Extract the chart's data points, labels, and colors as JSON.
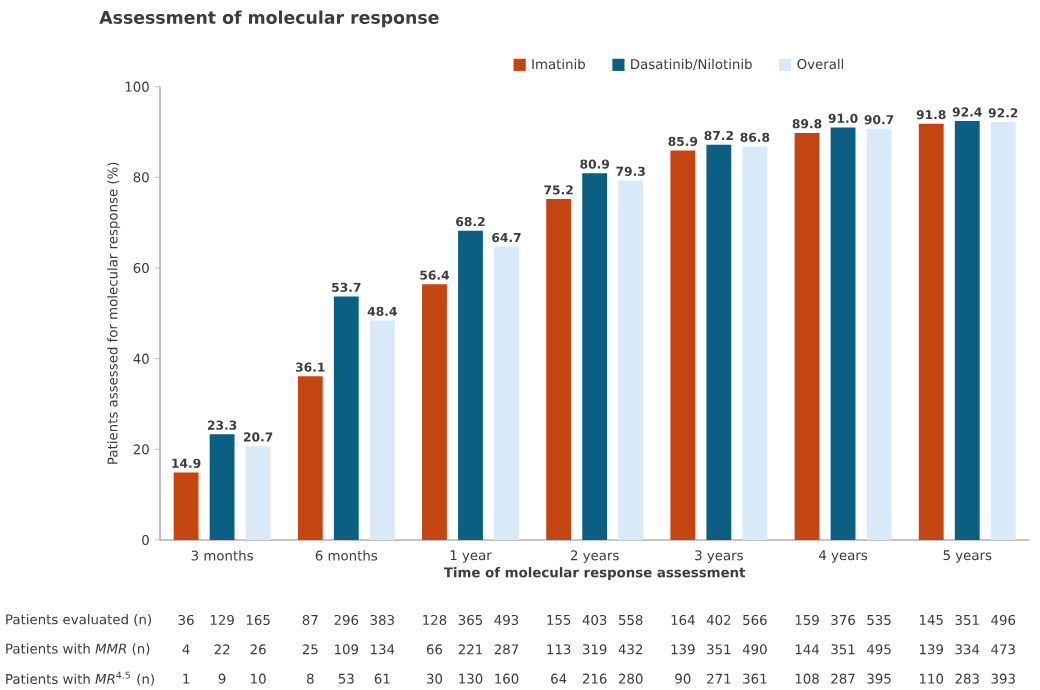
{
  "chart_data": {
    "type": "bar",
    "title": "Assessment of molecular response",
    "xlabel": "Time of molecular response assessment",
    "ylabel": "Patients assessed for molecular response (%)",
    "categories": [
      "3 months",
      "6 months",
      "1 year",
      "2 years",
      "3 years",
      "4 years",
      "5 years"
    ],
    "series": [
      {
        "name": "Imatinib",
        "color": "#c4450f",
        "values": [
          14.9,
          36.1,
          56.4,
          75.2,
          85.9,
          89.8,
          91.8
        ],
        "value_labels": [
          "14.9",
          "36.1",
          "56.4",
          "75.2",
          "85.9",
          "89.8",
          "91.8"
        ]
      },
      {
        "name": "Dasatinib/Nilotinib",
        "color": "#0b5f82",
        "values": [
          23.3,
          53.7,
          68.2,
          80.9,
          87.2,
          91.0,
          92.4
        ],
        "value_labels": [
          "23.3",
          "53.7",
          "68.2",
          "80.9",
          "87.2",
          "91.0",
          "92.4"
        ]
      },
      {
        "name": "Overall",
        "color": "#d8eaf8",
        "values": [
          20.7,
          48.4,
          64.7,
          79.3,
          86.8,
          90.7,
          92.2
        ],
        "value_labels": [
          "20.7",
          "48.4",
          "64.7",
          "79.3",
          "86.8",
          "90.7",
          "92.2"
        ]
      }
    ],
    "ylim": [
      0,
      100
    ],
    "yticks": [
      0,
      20,
      40,
      60,
      80,
      100
    ],
    "grid": false,
    "legend": "top",
    "annotations": [
      "Patients evaluated (n)",
      "36",
      "129",
      "165",
      "87",
      "296",
      "383",
      "128",
      "365",
      "493",
      "155",
      "403",
      "558",
      "164",
      "402",
      "566",
      "159",
      "376",
      "535",
      "145",
      "351",
      "496",
      "Patients with *MMR* (n)",
      "4",
      "22",
      "26",
      "25",
      "109",
      "134",
      "66",
      "221",
      "287",
      "113",
      "319",
      "432",
      "139",
      "351",
      "490",
      "144",
      "351",
      "495",
      "139",
      "334",
      "473",
      "Patients with *MR*$^{4.5}$ (n)",
      "1",
      "9",
      "10",
      "8",
      "53",
      "61",
      "30",
      "130",
      "160",
      "64",
      "216",
      "280",
      "90",
      "271",
      "361",
      "108",
      "287",
      "395",
      "110",
      "283",
      "393"
    ]
  }
}
